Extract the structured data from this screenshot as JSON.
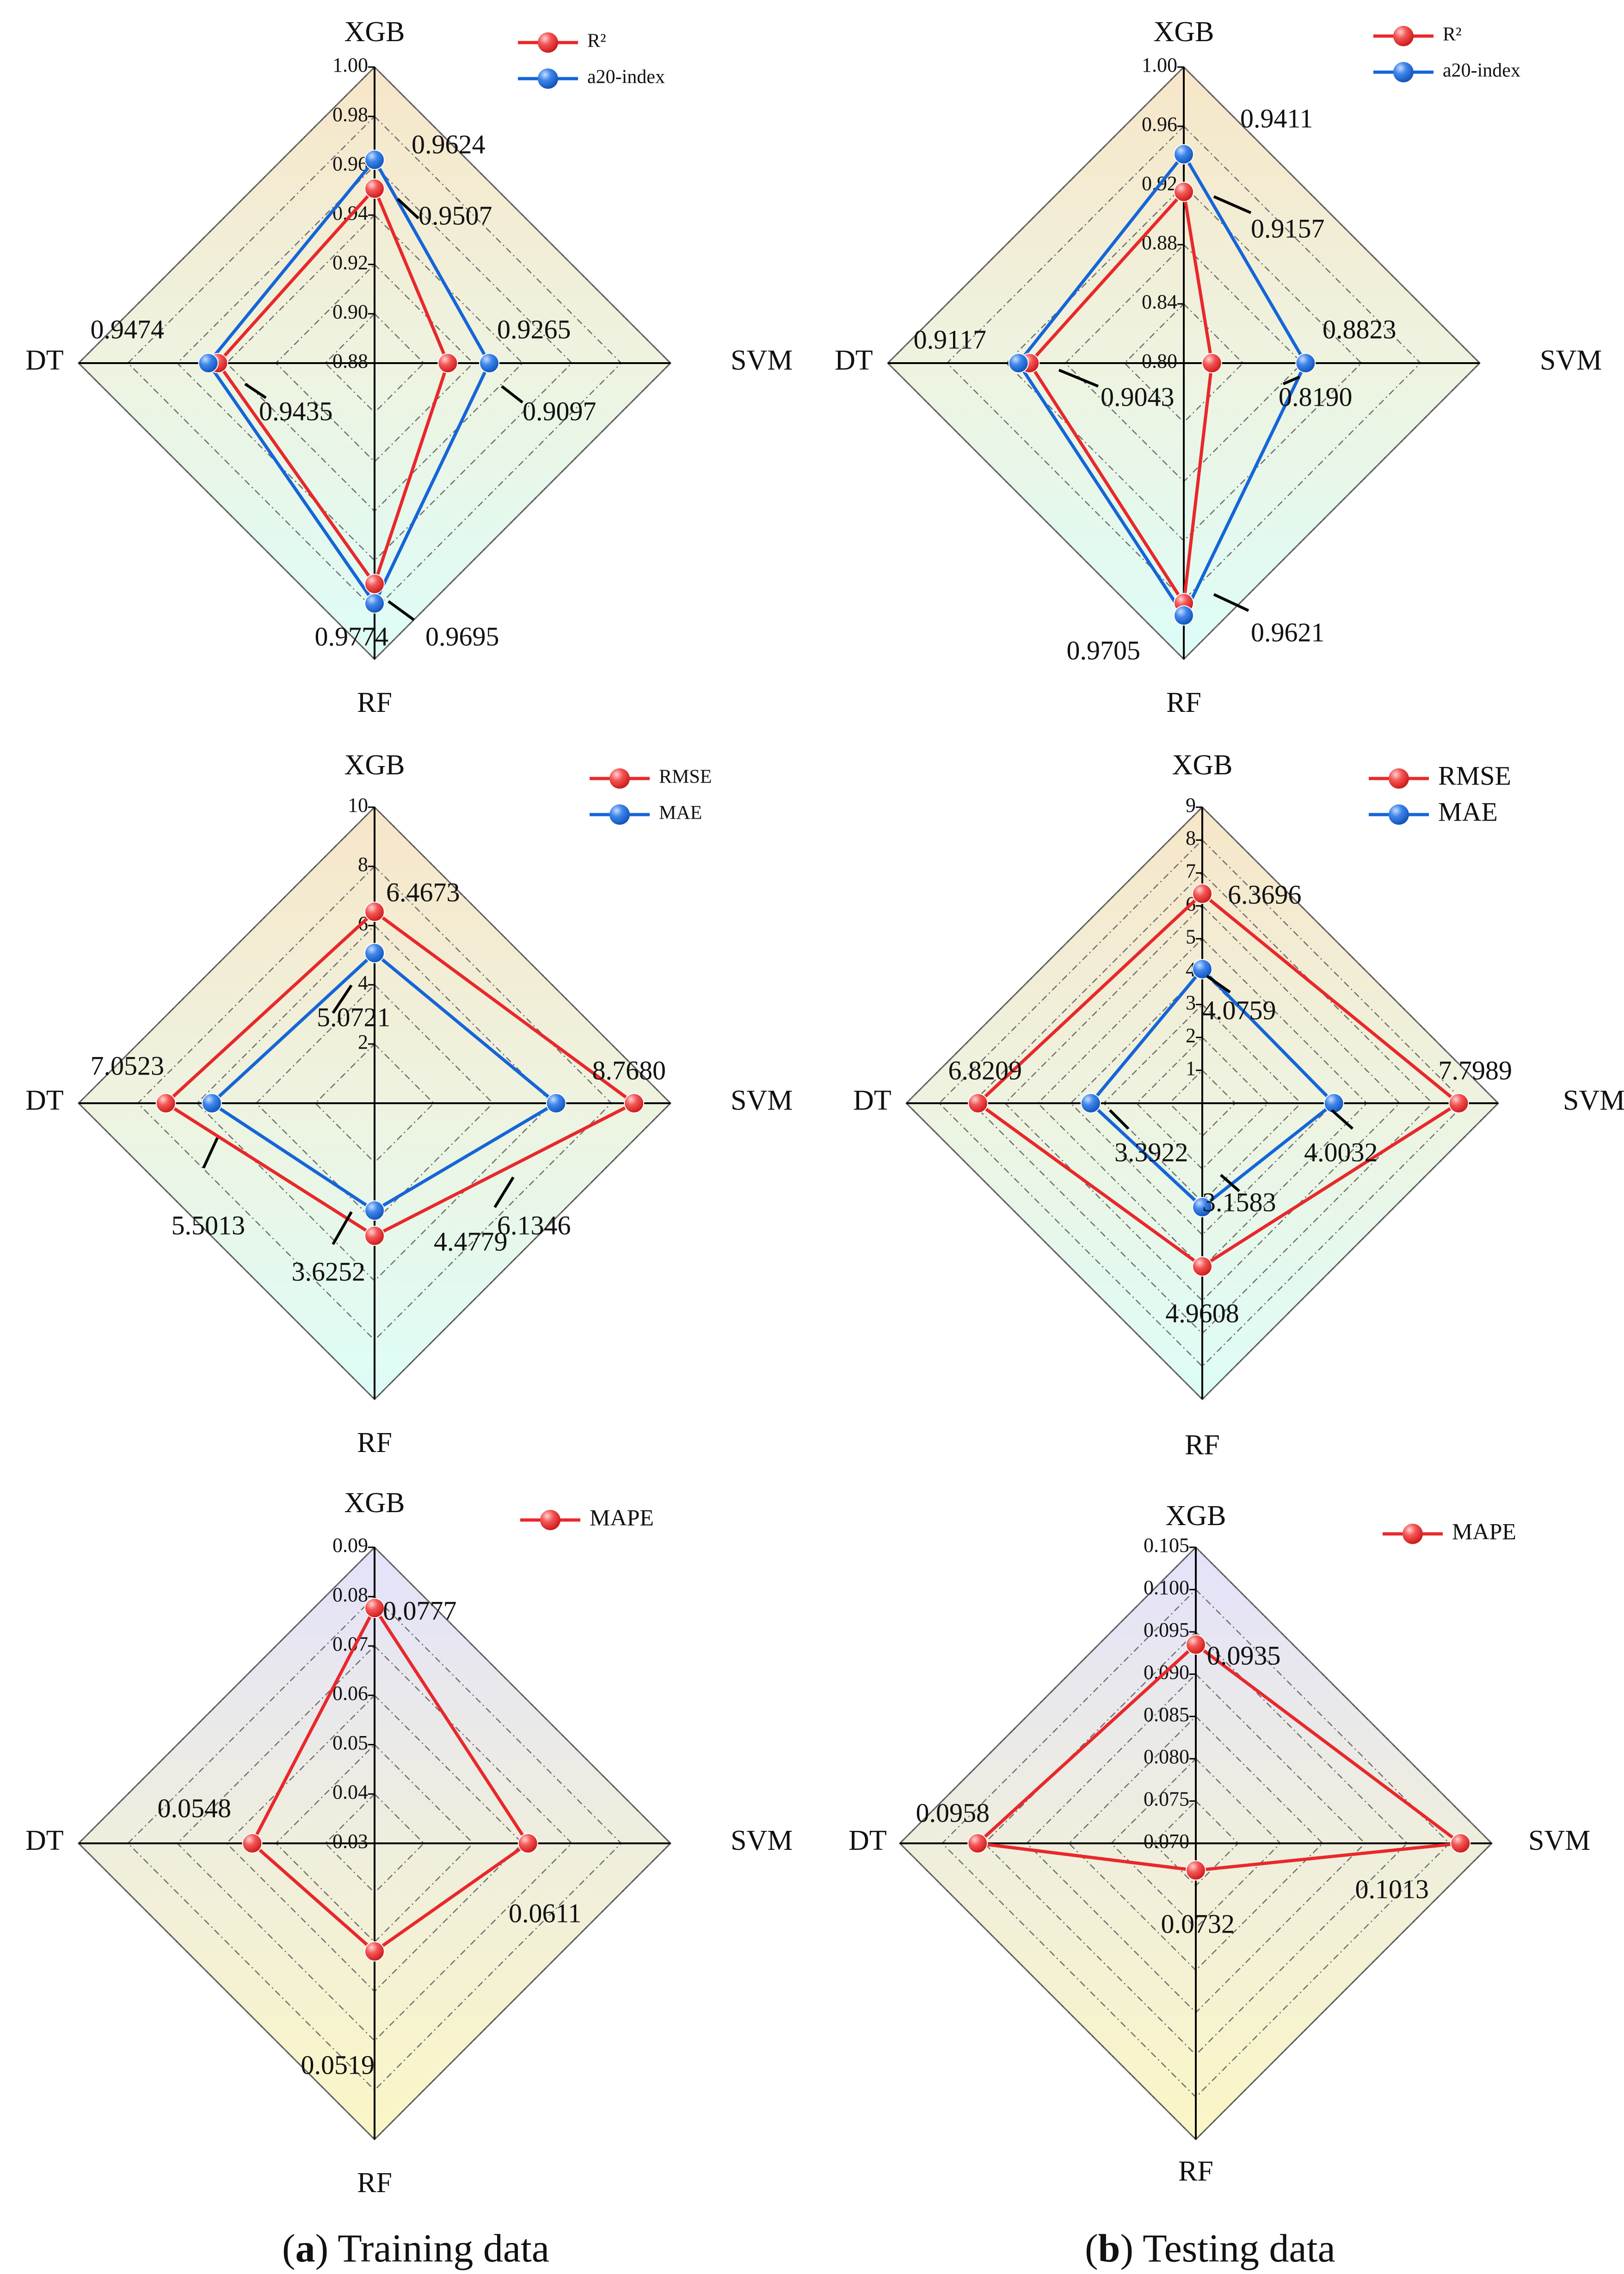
{
  "captions": {
    "a": {
      "letter": "a",
      "text": " Training data"
    },
    "b": {
      "letter": "b",
      "text": " Testing data"
    }
  },
  "colors": {
    "red": "#e8282b",
    "blue": "#1565d8",
    "axis": "#000000",
    "grid": "#6d6d6d"
  },
  "chart_data": [
    {
      "id": "a1",
      "type": "radar",
      "axes": [
        "XGB",
        "SVM",
        "RF",
        "DT"
      ],
      "range": [
        0.88,
        1.0
      ],
      "ticks": [
        "0.88",
        "0.90",
        "0.92",
        "0.94",
        "0.96",
        "0.98",
        "1.00"
      ],
      "series": [
        {
          "name": "R²",
          "color": "red",
          "values": [
            0.9507,
            0.9097,
            0.9695,
            0.9435
          ],
          "labels": [
            "0.9507",
            "0.9097",
            "0.9695",
            "0.9435"
          ]
        },
        {
          "name": "a20-index",
          "color": "blue",
          "values": [
            0.9624,
            0.9265,
            0.9774,
            0.9474
          ],
          "labels": [
            "0.9624",
            "0.9265",
            "0.9774",
            "0.9474"
          ]
        }
      ],
      "legend_position": "top-right",
      "background": "warm-gradient"
    },
    {
      "id": "b1",
      "type": "radar",
      "axes": [
        "XGB",
        "SVM",
        "RF",
        "DT"
      ],
      "range": [
        0.8,
        1.0
      ],
      "ticks": [
        "0.80",
        "0.84",
        "0.88",
        "0.92",
        "0.96",
        "1.00"
      ],
      "series": [
        {
          "name": "R²",
          "color": "red",
          "values": [
            0.9157,
            0.819,
            0.9621,
            0.9043
          ],
          "labels": [
            "0.9157",
            "0.8190",
            "0.9621",
            "0.9043"
          ]
        },
        {
          "name": "a20-index",
          "color": "blue",
          "values": [
            0.9411,
            0.8823,
            0.9705,
            0.9117
          ],
          "labels": [
            "0.9411",
            "0.8823",
            "0.9705",
            "0.9117"
          ]
        }
      ],
      "legend_position": "top-right",
      "background": "warm-gradient"
    },
    {
      "id": "a2",
      "type": "radar",
      "axes": [
        "XGB",
        "SVM",
        "RF",
        "DT"
      ],
      "range": [
        0,
        10
      ],
      "ticks": [
        "",
        "2",
        "4",
        "6",
        "8",
        "10"
      ],
      "series": [
        {
          "name": "RMSE",
          "color": "red",
          "values": [
            6.4673,
            8.768,
            4.4779,
            7.0523
          ],
          "labels": [
            "6.4673",
            "8.7680",
            "4.4779",
            "7.0523"
          ]
        },
        {
          "name": "MAE",
          "color": "blue",
          "values": [
            5.0721,
            6.1346,
            3.6252,
            5.5013
          ],
          "labels": [
            "5.0721",
            "6.1346",
            "3.6252",
            "5.5013"
          ]
        }
      ],
      "legend_position": "top-right",
      "background": "warm-gradient"
    },
    {
      "id": "b2",
      "type": "radar",
      "axes": [
        "XGB",
        "SVM",
        "RF",
        "DT"
      ],
      "range": [
        0,
        9
      ],
      "ticks": [
        "",
        "1",
        "2",
        "3",
        "4",
        "5",
        "6",
        "7",
        "8",
        "9"
      ],
      "series": [
        {
          "name": "RMSE",
          "color": "red",
          "values": [
            6.3696,
            7.7989,
            4.9608,
            6.8209
          ],
          "labels": [
            "6.3696",
            "7.7989",
            "4.9608",
            "6.8209"
          ]
        },
        {
          "name": "MAE",
          "color": "blue",
          "values": [
            4.0759,
            4.0032,
            3.1583,
            3.3922
          ],
          "labels": [
            "4.0759",
            "4.0032",
            "3.1583",
            "3.3922"
          ]
        }
      ],
      "legend_position": "top-right",
      "background": "warm-gradient"
    },
    {
      "id": "a3",
      "type": "radar",
      "axes": [
        "XGB",
        "SVM",
        "RF",
        "DT"
      ],
      "range": [
        0.03,
        0.09
      ],
      "ticks": [
        "0.03",
        "0.04",
        "0.05",
        "0.06",
        "0.07",
        "0.08",
        "0.09"
      ],
      "series": [
        {
          "name": "MAPE",
          "color": "red",
          "values": [
            0.0777,
            0.0611,
            0.0519,
            0.0548
          ],
          "labels": [
            "0.0777",
            "0.0611",
            "0.0519",
            "0.0548"
          ]
        }
      ],
      "legend_position": "top-right",
      "background": "lavender-yellow-gradient"
    },
    {
      "id": "b3",
      "type": "radar",
      "axes": [
        "XGB",
        "SVM",
        "RF",
        "DT"
      ],
      "range": [
        0.07,
        0.105
      ],
      "ticks": [
        "0.070",
        "0.075",
        "0.080",
        "0.085",
        "0.090",
        "0.095",
        "0.100",
        "0.105"
      ],
      "series": [
        {
          "name": "MAPE",
          "color": "red",
          "values": [
            0.0935,
            0.1013,
            0.0732,
            0.0958
          ],
          "labels": [
            "0.0935",
            "0.1013",
            "0.0732",
            "0.0958"
          ]
        }
      ],
      "legend_position": "top-right",
      "background": "lavender-yellow-gradient"
    }
  ]
}
